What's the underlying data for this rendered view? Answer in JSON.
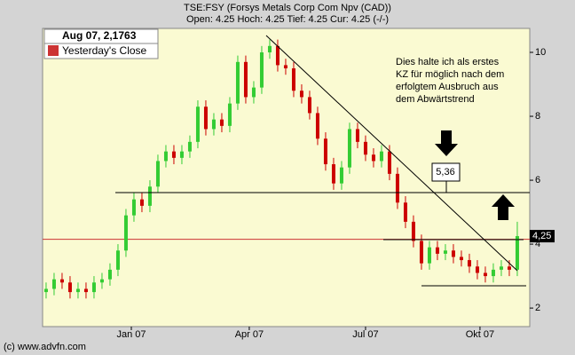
{
  "chart_data": {
    "type": "candlestick",
    "title": "TSE:FSY (Forsys Metals Corp Com Npv (CAD))",
    "subtitle": "Open: 4.25 Hoch: 4.25 Tief: 4.25 Cur: 4.25 (-/-)",
    "legend_date": "Aug 07, 2,1763",
    "legend_entry": "Yesterday's Close",
    "reference_color": "#cc3333",
    "up_color": "#33cc33",
    "down_color": "#cc0000",
    "annotation": [
      "Dies halte ich als erstes",
      "KZ für möglich nach  dem",
      "erfolgtem Ausbruch aus",
      "dem Abwärtstrend"
    ],
    "callout": "5,36",
    "last_price_label": "4,25",
    "copyright": "(c) www.advfn.com",
    "x": [
      0,
      1,
      2,
      3,
      4,
      5,
      6,
      7,
      8,
      9,
      10,
      11,
      12,
      13,
      14,
      15,
      16,
      17,
      18,
      19,
      20,
      21,
      22,
      23,
      24,
      25,
      26,
      27,
      28,
      29,
      30,
      31,
      32,
      33,
      34,
      35,
      36,
      37,
      38,
      39,
      40,
      41,
      42,
      43,
      44,
      45,
      46,
      47,
      48,
      49,
      50,
      51,
      52,
      53,
      54,
      55,
      56,
      57,
      58,
      59
    ],
    "open": [
      2.5,
      2.6,
      2.9,
      2.8,
      2.5,
      2.6,
      2.5,
      2.8,
      2.9,
      3.2,
      3.8,
      4.9,
      5.4,
      5.2,
      5.8,
      6.6,
      6.9,
      6.7,
      6.9,
      7.2,
      8.3,
      7.6,
      7.9,
      7.7,
      8.4,
      9.7,
      8.6,
      8.9,
      10.0,
      10.2,
      9.6,
      9.5,
      8.8,
      8.6,
      8.1,
      7.3,
      6.5,
      5.9,
      6.4,
      7.6,
      7.2,
      6.8,
      6.6,
      6.9,
      6.2,
      5.3,
      4.7,
      4.1,
      3.4,
      3.9,
      3.7,
      3.8,
      3.6,
      3.5,
      3.3,
      3.1,
      3.0,
      3.2,
      3.3,
      3.2
    ],
    "high": [
      2.8,
      3.1,
      3.1,
      3.0,
      2.8,
      2.8,
      3.0,
      3.1,
      3.4,
      4.0,
      5.1,
      5.6,
      5.6,
      6.0,
      6.8,
      7.1,
      7.1,
      7.1,
      7.4,
      8.5,
      8.5,
      8.1,
      8.1,
      8.6,
      9.9,
      9.9,
      9.1,
      10.2,
      10.4,
      10.4,
      9.8,
      9.7,
      9.0,
      8.8,
      8.3,
      7.5,
      6.7,
      6.6,
      7.8,
      7.8,
      7.4,
      7.0,
      7.1,
      7.1,
      6.4,
      5.5,
      4.9,
      4.3,
      4.1,
      4.1,
      4.0,
      4.0,
      3.8,
      3.7,
      3.5,
      3.3,
      3.4,
      3.5,
      3.5,
      4.7
    ],
    "low": [
      2.3,
      2.4,
      2.6,
      2.3,
      2.3,
      2.3,
      2.3,
      2.6,
      2.7,
      3.0,
      3.6,
      4.7,
      5.0,
      5.0,
      5.6,
      6.4,
      6.5,
      6.5,
      6.7,
      7.0,
      7.4,
      7.4,
      7.5,
      7.5,
      8.2,
      8.4,
      8.4,
      8.7,
      9.8,
      9.4,
      9.3,
      8.6,
      8.4,
      7.9,
      7.1,
      6.3,
      5.7,
      5.7,
      6.2,
      7.0,
      6.6,
      6.4,
      6.4,
      6.0,
      5.1,
      4.5,
      3.9,
      3.2,
      3.2,
      3.5,
      3.5,
      3.4,
      3.3,
      3.1,
      2.9,
      2.8,
      2.8,
      3.0,
      3.0,
      3.0
    ],
    "close": [
      2.6,
      2.9,
      2.8,
      2.5,
      2.6,
      2.5,
      2.8,
      2.9,
      3.2,
      3.8,
      4.9,
      5.4,
      5.2,
      5.8,
      6.6,
      6.9,
      6.7,
      6.9,
      7.2,
      8.3,
      7.6,
      7.9,
      7.7,
      8.4,
      9.7,
      8.6,
      8.9,
      10.0,
      10.2,
      9.6,
      9.5,
      8.8,
      8.6,
      8.1,
      7.3,
      6.5,
      5.9,
      6.4,
      7.6,
      7.2,
      6.8,
      6.6,
      6.9,
      6.2,
      5.3,
      4.7,
      4.1,
      3.4,
      3.9,
      3.7,
      3.8,
      3.6,
      3.5,
      3.3,
      3.1,
      3.0,
      3.2,
      3.3,
      3.2,
      4.25
    ],
    "xlim": [
      -0.44,
      60.56
    ],
    "xticks": [
      {
        "value": 10.67,
        "label": "Jan 07"
      },
      {
        "value": 25.44,
        "label": "Apr 07"
      },
      {
        "value": 40,
        "label": "Jul 07"
      },
      {
        "value": 54.33,
        "label": "Okt 07"
      }
    ],
    "ylim": [
      1.42,
      10.75
    ],
    "yticks": [
      2,
      4,
      6,
      8,
      10
    ],
    "reference_value": 4.15
  }
}
